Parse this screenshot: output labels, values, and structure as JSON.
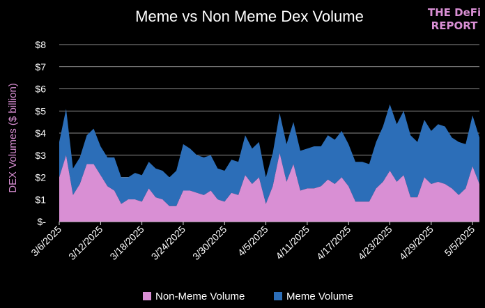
{
  "colors": {
    "background": "#000000",
    "non_meme": "#d98fd4",
    "meme": "#2c6eb8",
    "grid": "#bdbdbd",
    "ylabel": "#d98fd4",
    "logo": "#d98fd4"
  },
  "logo": {
    "line1": "THE DeFi",
    "line2": "REPORT"
  },
  "chart_data": {
    "type": "area",
    "stacked": true,
    "title": "Meme vs Non Meme Dex Volume",
    "ylabel": "DEX Volumes ($ billion)",
    "xlabel": "",
    "ylim": [
      0,
      8
    ],
    "yticks": [
      0,
      1,
      2,
      3,
      4,
      5,
      6,
      7,
      8
    ],
    "ytick_labels": [
      "$-",
      "$1",
      "$2",
      "$3",
      "$4",
      "$5",
      "$6",
      "$7",
      "$8"
    ],
    "grid": true,
    "legend_position": "bottom",
    "x_start": "2025-03-06",
    "x_end": "2025-05-06",
    "xtick_labels": [
      "3/6/2025",
      "3/12/2025",
      "3/18/2025",
      "3/24/2025",
      "3/30/2025",
      "4/5/2025",
      "4/11/2025",
      "4/17/2025",
      "4/23/2025",
      "4/29/2025",
      "5/5/2025"
    ],
    "xtick_dates": [
      "2025-03-06",
      "2025-03-12",
      "2025-03-18",
      "2025-03-24",
      "2025-03-30",
      "2025-04-05",
      "2025-04-11",
      "2025-04-17",
      "2025-04-23",
      "2025-04-29",
      "2025-05-05"
    ],
    "series": [
      {
        "name": "Non-Meme Volume",
        "color": "#d98fd4",
        "values": [
          2.0,
          3.0,
          1.2,
          1.7,
          2.6,
          2.6,
          2.1,
          1.6,
          1.4,
          0.8,
          1.0,
          1.0,
          0.9,
          1.5,
          1.1,
          1.0,
          0.7,
          0.7,
          1.4,
          1.4,
          1.3,
          1.2,
          1.4,
          1.0,
          0.9,
          1.3,
          1.2,
          2.1,
          1.7,
          2.0,
          0.8,
          1.6,
          3.1,
          1.8,
          2.6,
          1.4,
          1.5,
          1.5,
          1.6,
          1.9,
          1.7,
          2.0,
          1.6,
          0.9,
          0.9,
          0.9,
          1.5,
          1.8,
          2.3,
          1.8,
          2.1,
          1.1,
          1.1,
          2.0,
          1.7,
          1.8,
          1.7,
          1.5,
          1.2,
          1.5,
          2.5,
          1.7
        ]
      },
      {
        "name": "Meme Volume",
        "color": "#2c6eb8",
        "values": [
          1.6,
          2.1,
          1.2,
          1.2,
          1.3,
          1.6,
          1.3,
          1.3,
          1.5,
          1.2,
          1.0,
          1.2,
          1.2,
          1.2,
          1.3,
          1.3,
          1.3,
          1.6,
          2.1,
          1.9,
          1.7,
          1.7,
          1.6,
          1.4,
          1.4,
          1.5,
          1.5,
          1.8,
          1.6,
          1.6,
          1.2,
          1.5,
          1.8,
          1.7,
          1.9,
          1.8,
          1.8,
          1.9,
          1.8,
          2.0,
          2.0,
          2.1,
          1.9,
          1.8,
          1.8,
          1.7,
          2.1,
          2.5,
          3.0,
          2.6,
          2.9,
          2.8,
          2.5,
          2.6,
          2.4,
          2.6,
          2.6,
          2.3,
          2.4,
          2.0,
          2.3,
          2.1
        ]
      }
    ],
    "legend": [
      "Non-Meme Volume",
      "Meme Volume"
    ]
  }
}
